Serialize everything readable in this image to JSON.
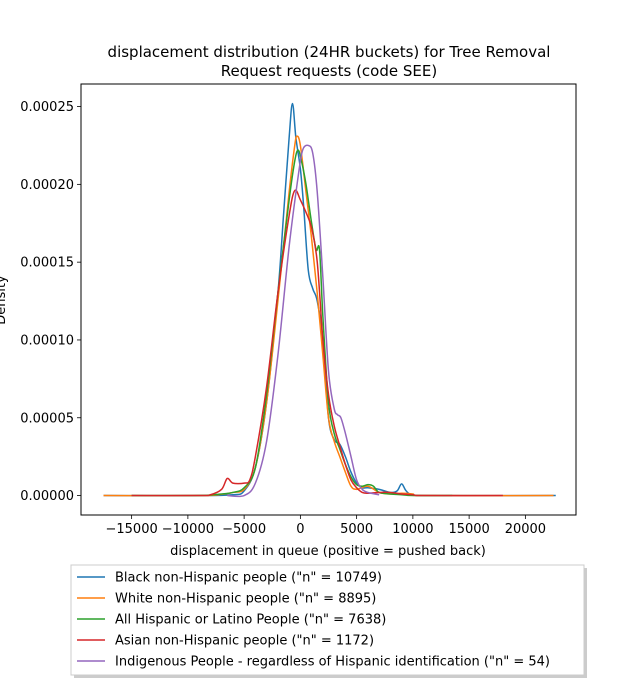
{
  "chart_data": {
    "type": "line",
    "title": "displacement distribution (24HR buckets) for Tree Removal Request requests (code SEE)",
    "title_lines": [
      "displacement distribution (24HR buckets) for Tree Removal",
      "Request requests (code SEE)"
    ],
    "xlabel": "displacement in queue (positive = pushed back)",
    "ylabel": "Density",
    "xlim": [
      -19500,
      24500
    ],
    "ylim": [
      -1.25e-05,
      0.0002645
    ],
    "xticks": [
      -15000,
      -10000,
      -5000,
      0,
      5000,
      10000,
      15000,
      20000
    ],
    "xtick_labels": [
      "−15000",
      "−10000",
      "−5000",
      "0",
      "5000",
      "10000",
      "15000",
      "20000"
    ],
    "yticks": [
      0,
      5e-05,
      0.0001,
      0.00015,
      0.0002,
      0.00025
    ],
    "ytick_labels": [
      "0.00000",
      "0.00005",
      "0.00010",
      "0.00015",
      "0.00020",
      "0.00025"
    ],
    "grid": false,
    "legend_position": "below",
    "series": [
      {
        "name": "Black non-Hispanic people (\"n\" = 10749)",
        "color": "#1f77b4",
        "points": [
          [
            -17500,
            0
          ],
          [
            -9000,
            0
          ],
          [
            -6000,
            5e-07
          ],
          [
            -5000,
            3e-06
          ],
          [
            -4000,
            1.8e-05
          ],
          [
            -3000,
            6e-05
          ],
          [
            -2000,
            0.00013
          ],
          [
            -1500,
            0.00018
          ],
          [
            -1000,
            0.00023
          ],
          [
            -700,
            0.000252
          ],
          [
            -400,
            0.00023
          ],
          [
            0,
            0.00021
          ],
          [
            300,
            0.000185
          ],
          [
            700,
            0.000145
          ],
          [
            1100,
            0.000133
          ],
          [
            1500,
            0.000125
          ],
          [
            2000,
            0.0001
          ],
          [
            2500,
            5e-05
          ],
          [
            3000,
            3.6e-05
          ],
          [
            3500,
            3.3e-05
          ],
          [
            4000,
            2.5e-05
          ],
          [
            4500,
            1.5e-05
          ],
          [
            5000,
            8e-06
          ],
          [
            5500,
            5e-06
          ],
          [
            6000,
            5e-06
          ],
          [
            7000,
            4e-06
          ],
          [
            8000,
            2e-06
          ],
          [
            8600,
            3e-06
          ],
          [
            9000,
            7.5e-06
          ],
          [
            9400,
            3e-06
          ],
          [
            10000,
            5e-07
          ],
          [
            12000,
            0
          ],
          [
            22700,
            0
          ]
        ]
      },
      {
        "name": "White non-Hispanic people (\"n\" = 8895)",
        "color": "#ff7f0e",
        "points": [
          [
            -17500,
            0
          ],
          [
            -9000,
            0
          ],
          [
            -7000,
            8e-07
          ],
          [
            -6000,
            2e-06
          ],
          [
            -5000,
            4e-06
          ],
          [
            -4000,
            1.8e-05
          ],
          [
            -3000,
            6e-05
          ],
          [
            -2000,
            0.000125
          ],
          [
            -1000,
            0.000195
          ],
          [
            -500,
            0.000225
          ],
          [
            -300,
            0.000231
          ],
          [
            0,
            0.000225
          ],
          [
            500,
            0.000195
          ],
          [
            1000,
            0.000165
          ],
          [
            1500,
            0.00013
          ],
          [
            2000,
            9e-05
          ],
          [
            2500,
            5e-05
          ],
          [
            3000,
            3.5e-05
          ],
          [
            3500,
            2.5e-05
          ],
          [
            4000,
            1.5e-05
          ],
          [
            4500,
            6e-06
          ],
          [
            5000,
            4e-06
          ],
          [
            6000,
            6e-06
          ],
          [
            7000,
            2e-06
          ],
          [
            8000,
            1e-06
          ],
          [
            9000,
            1.5e-06
          ],
          [
            10000,
            1e-06
          ],
          [
            11000,
            0
          ],
          [
            22500,
            0
          ]
        ]
      },
      {
        "name": "All Hispanic or Latino People (\"n\" = 7638)",
        "color": "#2ca02c",
        "points": [
          [
            -15000,
            0
          ],
          [
            -9000,
            0
          ],
          [
            -7000,
            1e-06
          ],
          [
            -6000,
            2e-06
          ],
          [
            -5000,
            5e-06
          ],
          [
            -4000,
            1.8e-05
          ],
          [
            -3000,
            6.5e-05
          ],
          [
            -2000,
            0.00013
          ],
          [
            -1000,
            0.00019
          ],
          [
            -500,
            0.000215
          ],
          [
            -200,
            0.000222
          ],
          [
            100,
            0.000215
          ],
          [
            500,
            0.0002
          ],
          [
            1000,
            0.000175
          ],
          [
            1400,
            0.000158
          ],
          [
            1700,
            0.000158
          ],
          [
            2000,
            0.000115
          ],
          [
            2500,
            6e-05
          ],
          [
            3000,
            4e-05
          ],
          [
            3500,
            3e-05
          ],
          [
            4000,
            2e-05
          ],
          [
            4500,
            1.2e-05
          ],
          [
            5000,
            7e-06
          ],
          [
            5500,
            6e-06
          ],
          [
            6000,
            7e-06
          ],
          [
            6500,
            6e-06
          ],
          [
            7000,
            2e-06
          ],
          [
            8000,
            1e-06
          ],
          [
            9000,
            5e-07
          ],
          [
            10000,
            0
          ],
          [
            13500,
            0
          ]
        ]
      },
      {
        "name": "Asian non-Hispanic people (\"n\" = 1172)",
        "color": "#d62728",
        "points": [
          [
            -15000,
            0
          ],
          [
            -9000,
            0
          ],
          [
            -8000,
            5e-07
          ],
          [
            -7000,
            4e-06
          ],
          [
            -6500,
            1.1e-05
          ],
          [
            -6000,
            8e-06
          ],
          [
            -5000,
            8e-06
          ],
          [
            -4500,
            1e-05
          ],
          [
            -4000,
            2.5e-05
          ],
          [
            -3000,
            7e-05
          ],
          [
            -2000,
            0.00013
          ],
          [
            -1000,
            0.00018
          ],
          [
            -500,
            0.000196
          ],
          [
            0,
            0.00019
          ],
          [
            500,
            0.000182
          ],
          [
            1000,
            0.000172
          ],
          [
            1500,
            0.00015
          ],
          [
            2000,
            0.0001
          ],
          [
            2500,
            6.5e-05
          ],
          [
            3000,
            4.5e-05
          ],
          [
            3500,
            3.2e-05
          ],
          [
            4000,
            2e-05
          ],
          [
            4500,
            1e-05
          ],
          [
            5000,
            5e-06
          ],
          [
            5500,
            2e-06
          ],
          [
            6000,
            1.5e-06
          ],
          [
            7000,
            2e-06
          ],
          [
            8000,
            2e-06
          ],
          [
            9000,
            1e-06
          ],
          [
            10000,
            5e-07
          ],
          [
            11000,
            0
          ],
          [
            18000,
            0
          ]
        ]
      },
      {
        "name": "Indigenous People - regardless of Hispanic identification (\"n\" = 54)",
        "color": "#9467bd",
        "points": [
          [
            -6500,
            0
          ],
          [
            -5000,
            0
          ],
          [
            -4000,
            8e-06
          ],
          [
            -3000,
            3.5e-05
          ],
          [
            -2000,
            9e-05
          ],
          [
            -1000,
            0.00016
          ],
          [
            -200,
            0.000205
          ],
          [
            200,
            0.000222
          ],
          [
            700,
            0.000225
          ],
          [
            1100,
            0.00022
          ],
          [
            1500,
            0.000195
          ],
          [
            2000,
            0.00014
          ],
          [
            2500,
            8e-05
          ],
          [
            3000,
            5.6e-05
          ],
          [
            3300,
            5.2e-05
          ],
          [
            3600,
            5e-05
          ],
          [
            4000,
            4e-05
          ],
          [
            4500,
            2.5e-05
          ],
          [
            5000,
            1e-05
          ],
          [
            5500,
            4e-06
          ],
          [
            6000,
            2e-06
          ],
          [
            7000,
            5e-07
          ]
        ]
      }
    ]
  }
}
